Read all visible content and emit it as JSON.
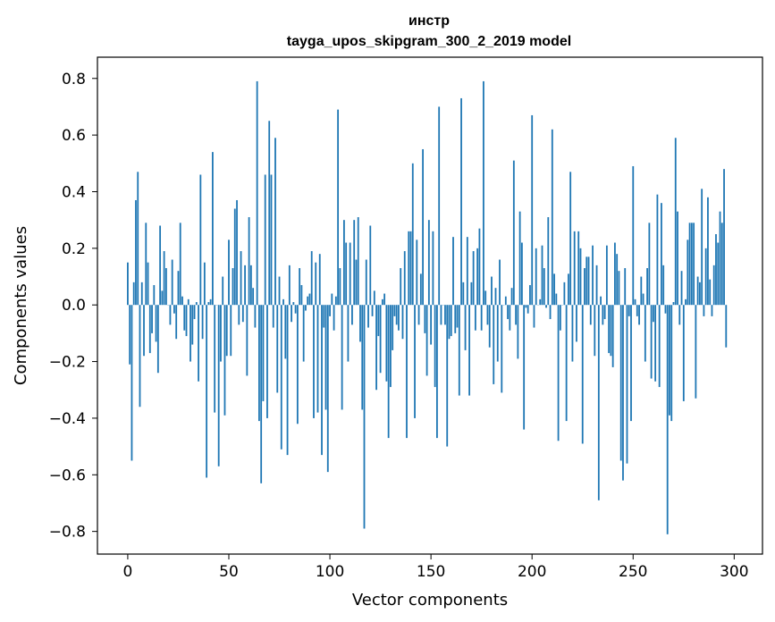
{
  "chart_data": {
    "type": "bar",
    "title_line1": "инстр",
    "title_line2": "tayga_upos_skipgram_300_2_2019 model",
    "xlabel": "Vector components",
    "ylabel": "Components values",
    "xlim": [
      -15,
      314
    ],
    "ylim": [
      -0.88,
      0.875
    ],
    "xticks": [
      0,
      50,
      100,
      150,
      200,
      250,
      300
    ],
    "xtick_labels": [
      "0",
      "50",
      "100",
      "150",
      "200",
      "250",
      "300"
    ],
    "yticks": [
      -0.8,
      -0.6,
      -0.4,
      -0.2,
      0.0,
      0.2,
      0.4,
      0.6,
      0.8
    ],
    "ytick_labels": [
      "−0.8",
      "−0.6",
      "−0.4",
      "−0.2",
      "0.0",
      "0.2",
      "0.4",
      "0.6",
      "0.8"
    ],
    "bar_color": "#1f77b4",
    "values": [
      0.15,
      -0.21,
      -0.55,
      0.08,
      0.37,
      0.47,
      -0.36,
      0.08,
      -0.18,
      0.29,
      0.15,
      -0.17,
      -0.1,
      0.07,
      -0.13,
      -0.24,
      0.28,
      0.05,
      0.19,
      0.13,
      0.0,
      -0.07,
      0.16,
      -0.03,
      -0.12,
      0.12,
      0.29,
      0.03,
      -0.09,
      -0.11,
      0.02,
      -0.2,
      -0.14,
      -0.05,
      0.01,
      -0.27,
      0.46,
      -0.12,
      0.15,
      -0.61,
      0.01,
      0.02,
      0.54,
      -0.38,
      0.0,
      -0.57,
      -0.2,
      0.1,
      -0.39,
      -0.18,
      0.23,
      -0.18,
      0.13,
      0.34,
      0.37,
      -0.07,
      0.19,
      -0.06,
      0.14,
      -0.25,
      0.31,
      0.14,
      0.06,
      -0.08,
      0.79,
      -0.41,
      -0.63,
      -0.34,
      0.46,
      -0.4,
      0.65,
      0.46,
      -0.08,
      0.59,
      -0.31,
      0.1,
      -0.51,
      0.02,
      -0.19,
      -0.53,
      0.14,
      -0.06,
      0.01,
      -0.03,
      -0.42,
      0.13,
      0.07,
      -0.2,
      -0.02,
      0.03,
      0.04,
      0.19,
      -0.4,
      0.15,
      -0.38,
      0.18,
      -0.53,
      -0.08,
      -0.37,
      -0.59,
      -0.04,
      0.04,
      -0.09,
      0.03,
      0.69,
      0.13,
      -0.37,
      0.3,
      0.22,
      -0.2,
      0.22,
      -0.07,
      0.3,
      0.16,
      0.31,
      -0.13,
      -0.37,
      -0.79,
      0.16,
      -0.08,
      0.28,
      -0.04,
      0.05,
      -0.3,
      -0.11,
      -0.24,
      0.02,
      0.04,
      -0.27,
      -0.47,
      -0.29,
      -0.16,
      -0.04,
      -0.07,
      -0.09,
      0.13,
      -0.12,
      0.19,
      -0.47,
      0.26,
      0.26,
      0.5,
      -0.4,
      0.23,
      -0.07,
      0.11,
      0.55,
      -0.1,
      -0.25,
      0.3,
      -0.14,
      0.26,
      -0.29,
      -0.47,
      0.7,
      -0.07,
      0.0,
      -0.07,
      -0.5,
      -0.12,
      -0.11,
      0.24,
      -0.1,
      -0.08,
      -0.32,
      0.73,
      0.08,
      -0.16,
      0.24,
      -0.32,
      0.08,
      0.19,
      -0.09,
      0.2,
      0.27,
      -0.09,
      0.79,
      0.05,
      -0.07,
      -0.15,
      0.1,
      -0.28,
      0.06,
      -0.2,
      0.16,
      -0.31,
      0.0,
      0.03,
      -0.05,
      -0.09,
      0.06,
      0.51,
      -0.07,
      -0.19,
      0.33,
      0.22,
      -0.44,
      -0.01,
      -0.03,
      0.07,
      0.67,
      -0.08,
      0.2,
      0.0,
      0.02,
      0.21,
      0.13,
      -0.01,
      0.31,
      -0.05,
      0.62,
      0.11,
      0.04,
      -0.48,
      -0.09,
      0.0,
      0.08,
      -0.41,
      0.11,
      0.47,
      -0.2,
      0.26,
      -0.13,
      0.26,
      0.2,
      -0.49,
      0.13,
      0.17,
      0.17,
      -0.07,
      0.21,
      -0.18,
      0.14,
      -0.69,
      0.03,
      -0.07,
      -0.05,
      0.21,
      -0.17,
      -0.18,
      -0.22,
      0.22,
      0.18,
      0.12,
      -0.55,
      -0.62,
      0.13,
      -0.56,
      -0.04,
      -0.41,
      0.49,
      0.02,
      -0.04,
      -0.07,
      0.1,
      0.04,
      -0.2,
      0.13,
      0.29,
      -0.26,
      -0.06,
      -0.27,
      0.39,
      -0.29,
      0.36,
      0.14,
      -0.03,
      -0.81,
      -0.39,
      -0.41,
      0.01,
      0.59,
      0.33,
      -0.07,
      0.12,
      -0.34,
      0.02,
      0.23,
      0.29,
      0.29,
      0.29,
      -0.33,
      0.1,
      0.08,
      0.41,
      -0.04,
      0.2,
      0.38,
      0.09,
      -0.04,
      0.14,
      0.25,
      0.22,
      0.33,
      0.29,
      0.48,
      -0.15
    ]
  }
}
